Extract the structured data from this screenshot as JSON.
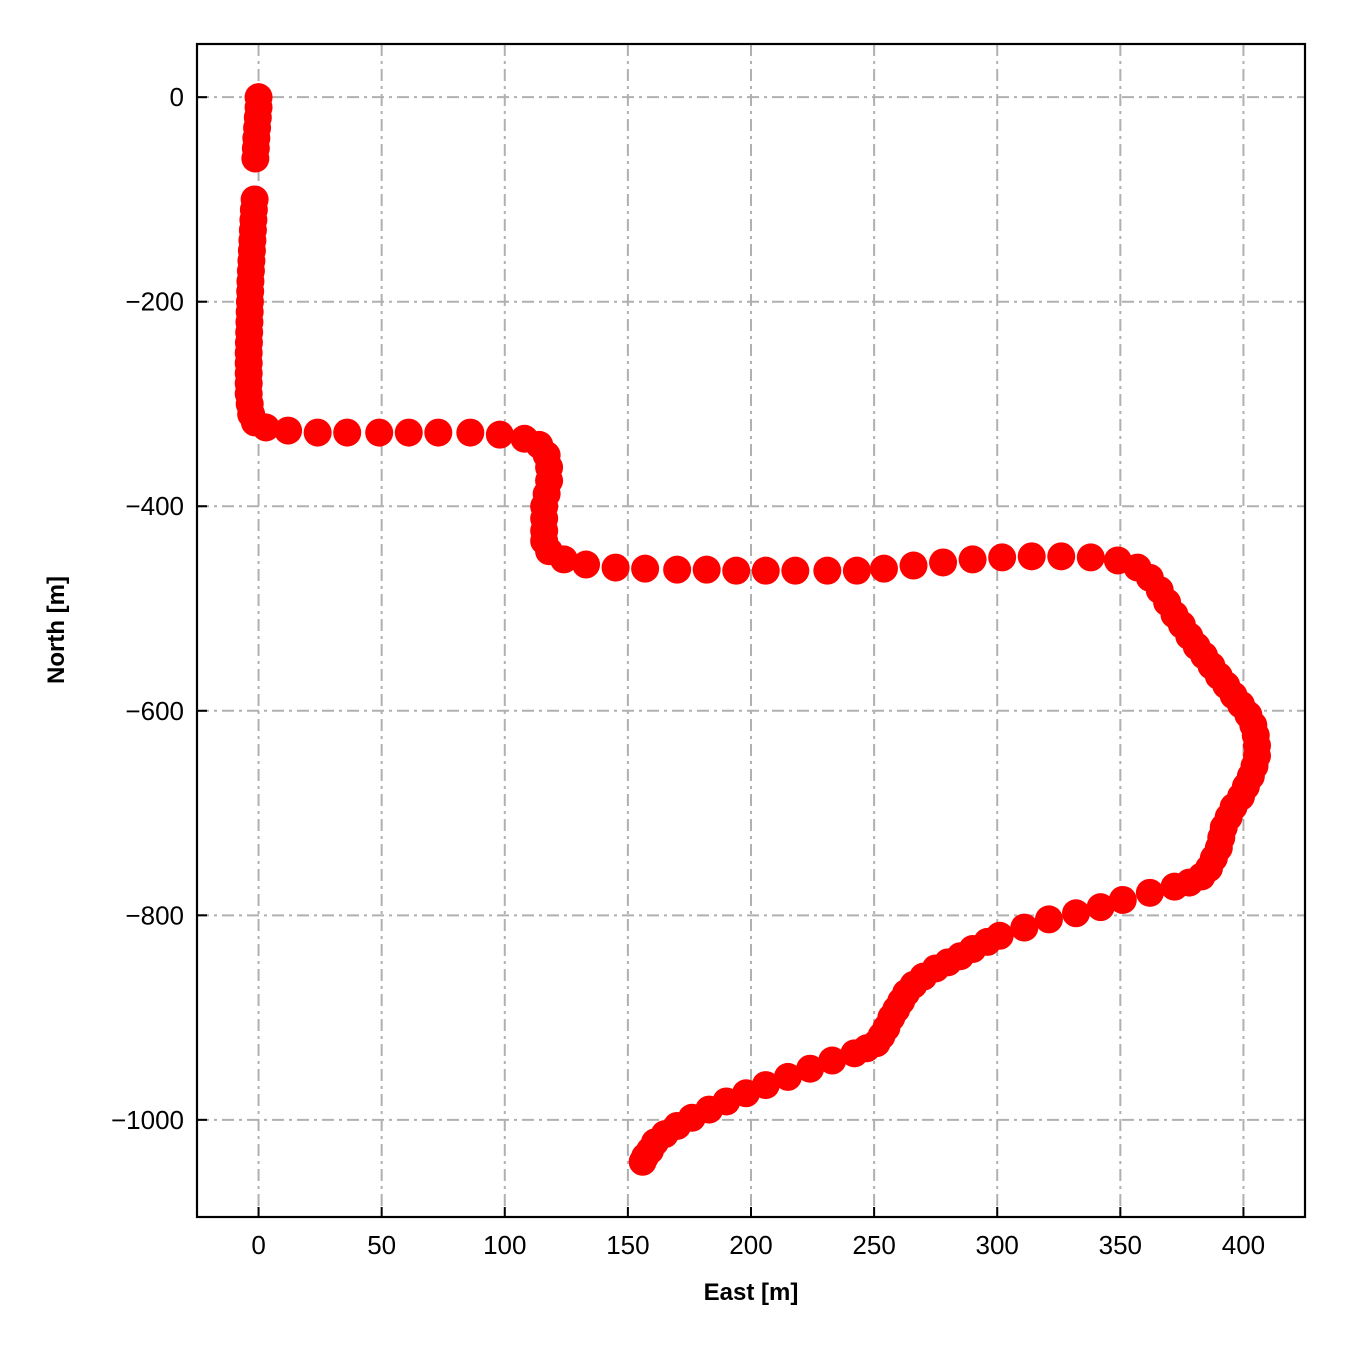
{
  "chart_data": {
    "type": "scatter",
    "title": "",
    "xlabel": "East [m]",
    "ylabel": "North [m]",
    "xlim": [
      -25,
      425
    ],
    "ylim": [
      -1095,
      52
    ],
    "xticks": [
      0,
      50,
      100,
      150,
      200,
      250,
      300,
      350,
      400
    ],
    "xtick_labels": [
      "0",
      "50",
      "100",
      "150",
      "200",
      "250",
      "300",
      "350",
      "400"
    ],
    "yticks": [
      0,
      -200,
      -400,
      -600,
      -800,
      -1000
    ],
    "ytick_labels": [
      "0",
      "−200",
      "−400",
      "−600",
      "−800",
      "−1000"
    ],
    "grid": true,
    "grid_style": "dash-dot",
    "legend": "none",
    "marker_color": "#ff0000",
    "grid_color": "#b0b0b0",
    "series": [
      {
        "points": [
          [
            0,
            0
          ],
          [
            0,
            -10
          ],
          [
            -0.3,
            -20
          ],
          [
            -0.6,
            -30
          ],
          [
            -0.9,
            -40
          ],
          [
            -1.1,
            -50
          ],
          [
            -1.3,
            -60
          ],
          [
            -1.6,
            -100
          ],
          [
            -1.9,
            -110
          ],
          [
            -2.1,
            -120
          ],
          [
            -2.3,
            -130
          ],
          [
            -2.5,
            -140
          ],
          [
            -2.7,
            -150
          ],
          [
            -2.9,
            -160
          ],
          [
            -3.1,
            -170
          ],
          [
            -3.3,
            -180
          ],
          [
            -3.4,
            -190
          ],
          [
            -3.5,
            -200
          ],
          [
            -3.6,
            -210
          ],
          [
            -3.7,
            -220
          ],
          [
            -3.8,
            -230
          ],
          [
            -3.9,
            -240
          ],
          [
            -4.0,
            -250
          ],
          [
            -4.0,
            -260
          ],
          [
            -4.0,
            -270
          ],
          [
            -4.0,
            -280
          ],
          [
            -4.0,
            -290
          ],
          [
            -3.6,
            -300
          ],
          [
            -3,
            -310
          ],
          [
            -1.5,
            -318
          ],
          [
            3,
            -323
          ],
          [
            12,
            -326
          ],
          [
            24,
            -328
          ],
          [
            36,
            -328
          ],
          [
            49,
            -328
          ],
          [
            61,
            -328
          ],
          [
            73,
            -328
          ],
          [
            86,
            -328
          ],
          [
            98,
            -330
          ],
          [
            108,
            -334
          ],
          [
            114,
            -340
          ],
          [
            117,
            -350
          ],
          [
            118,
            -362
          ],
          [
            118,
            -375
          ],
          [
            117,
            -388
          ],
          [
            116,
            -400
          ],
          [
            116,
            -412
          ],
          [
            116,
            -424
          ],
          [
            116,
            -434
          ],
          [
            118,
            -444
          ],
          [
            124,
            -452
          ],
          [
            133,
            -457
          ],
          [
            145,
            -460
          ],
          [
            157,
            -461
          ],
          [
            170,
            -462
          ],
          [
            182,
            -462
          ],
          [
            194,
            -463
          ],
          [
            206,
            -463
          ],
          [
            218,
            -463
          ],
          [
            231,
            -463
          ],
          [
            243,
            -463
          ],
          [
            254,
            -461
          ],
          [
            266,
            -458
          ],
          [
            278,
            -455
          ],
          [
            290,
            -452
          ],
          [
            302,
            -450
          ],
          [
            314,
            -449
          ],
          [
            326,
            -449
          ],
          [
            338,
            -450
          ],
          [
            349,
            -453
          ],
          [
            357,
            -460
          ],
          [
            362,
            -470
          ],
          [
            366,
            -482
          ],
          [
            369,
            -494
          ],
          [
            372,
            -506
          ],
          [
            375,
            -516
          ],
          [
            378,
            -527
          ],
          [
            381,
            -537
          ],
          [
            384,
            -546
          ],
          [
            387,
            -556
          ],
          [
            390,
            -566
          ],
          [
            393,
            -575
          ],
          [
            396,
            -585
          ],
          [
            399,
            -594
          ],
          [
            402,
            -604
          ],
          [
            404,
            -614
          ],
          [
            405,
            -624
          ],
          [
            405.5,
            -634
          ],
          [
            405.5,
            -644
          ],
          [
            404.5,
            -654
          ],
          [
            403,
            -664
          ],
          [
            401,
            -674
          ],
          [
            399,
            -684
          ],
          [
            396,
            -694
          ],
          [
            394,
            -704
          ],
          [
            392,
            -714
          ],
          [
            391,
            -724
          ],
          [
            390,
            -734
          ],
          [
            388,
            -744
          ],
          [
            386,
            -754
          ],
          [
            383,
            -762
          ],
          [
            378,
            -768
          ],
          [
            372,
            -772
          ],
          [
            362,
            -778
          ],
          [
            351,
            -785
          ],
          [
            342,
            -792
          ],
          [
            332,
            -798
          ],
          [
            321,
            -804
          ],
          [
            311,
            -812
          ],
          [
            301,
            -820
          ],
          [
            296,
            -826
          ],
          [
            290,
            -833
          ],
          [
            285,
            -840
          ],
          [
            280,
            -846
          ],
          [
            275,
            -852
          ],
          [
            270,
            -860
          ],
          [
            266,
            -868
          ],
          [
            263,
            -876
          ],
          [
            261,
            -884
          ],
          [
            259,
            -892
          ],
          [
            257,
            -900
          ],
          [
            255,
            -910
          ],
          [
            253,
            -918
          ],
          [
            251,
            -925
          ],
          [
            247,
            -930
          ],
          [
            242,
            -935
          ],
          [
            233,
            -942
          ],
          [
            224,
            -950
          ],
          [
            215,
            -958
          ],
          [
            206,
            -966
          ],
          [
            198,
            -974
          ],
          [
            190,
            -982
          ],
          [
            183,
            -990
          ],
          [
            176,
            -998
          ],
          [
            170,
            -1006
          ],
          [
            165,
            -1014
          ],
          [
            161,
            -1022
          ],
          [
            159,
            -1030
          ],
          [
            157,
            -1036
          ],
          [
            156,
            -1041
          ]
        ]
      }
    ]
  }
}
